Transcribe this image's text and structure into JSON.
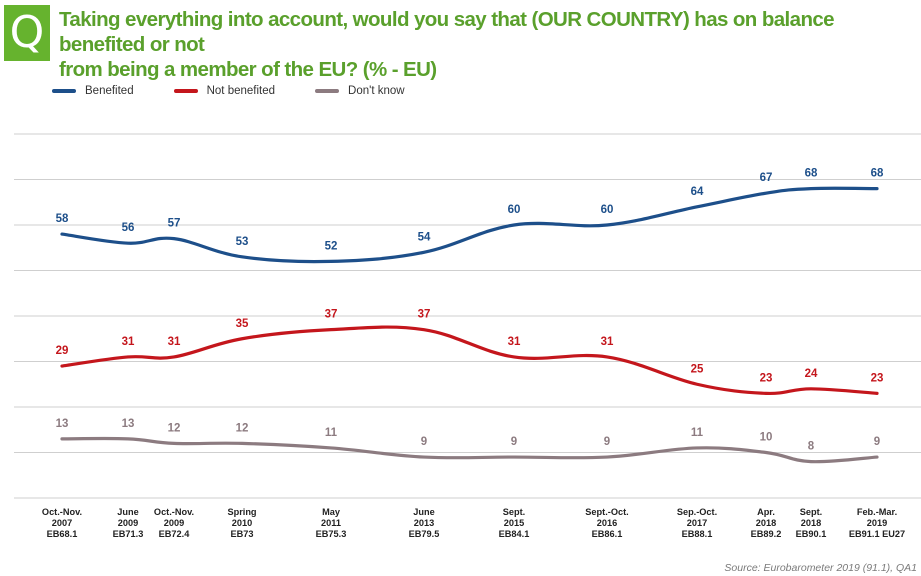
{
  "badge": "Q",
  "title_line1": "Taking everything into account, would you say that (OUR COUNTRY) has on balance benefited or not",
  "title_line2": "from being a member of the EU? (% - EU)",
  "source": "Source: Eurobarometer 2019 (91.1), QA1",
  "colors": {
    "benefited": "#1d4f8a",
    "not_benefited": "#c4161c",
    "dont_know": "#8c7b80",
    "grid": "#cfcfcf",
    "title": "#5aa02c"
  },
  "chart_data": {
    "type": "line",
    "title": "Taking everything into account, would you say that (OUR COUNTRY) has on balance benefited or not from being a member of the EU? (% - EU)",
    "categories": [
      [
        "Oct.-Nov.",
        "2007",
        "EB68.1"
      ],
      [
        "June",
        "2009",
        "EB71.3"
      ],
      [
        "Oct.-Nov.",
        "2009",
        "EB72.4"
      ],
      [
        "Spring",
        "2010",
        "EB73"
      ],
      [
        "May",
        "2011",
        "EB75.3"
      ],
      [
        "June",
        "2013",
        "EB79.5"
      ],
      [
        "Sept.",
        "2015",
        "EB84.1"
      ],
      [
        "Sept.-Oct.",
        "2016",
        "EB86.1"
      ],
      [
        "Sep.-Oct.",
        "2017",
        "EB88.1"
      ],
      [
        "Apr.",
        "2018",
        "EB89.2"
      ],
      [
        "Sept.",
        "2018",
        "EB90.1"
      ],
      [
        "Feb.-Mar.",
        "2019",
        "EB91.1 EU27"
      ]
    ],
    "series": [
      {
        "name": "Benefited",
        "color": "#1d4f8a",
        "values": [
          58,
          56,
          57,
          53,
          52,
          54,
          60,
          60,
          64,
          67,
          68,
          68
        ]
      },
      {
        "name": "Not benefited",
        "color": "#c4161c",
        "values": [
          29,
          31,
          31,
          35,
          37,
          37,
          31,
          31,
          25,
          23,
          24,
          23
        ]
      },
      {
        "name": "Don't know",
        "color": "#8c7b80",
        "values": [
          13,
          13,
          12,
          12,
          11,
          9,
          9,
          9,
          11,
          10,
          8,
          9
        ]
      }
    ],
    "ylim": [
      0,
      80
    ],
    "grid": true,
    "y_ticks_shown": false,
    "legend_position": "top-left"
  }
}
